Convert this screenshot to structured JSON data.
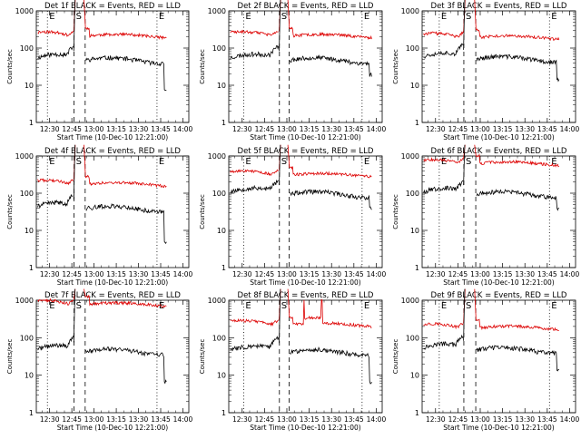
{
  "chart_data": {
    "type": "line",
    "common": {
      "xlabel": "Start Time (10-Dec-10 12:21:00)",
      "ylabel": "Counts/sec",
      "x_ticks": [
        "12:30",
        "12:45",
        "13:00",
        "13:15",
        "13:30",
        "13:45",
        "14:00"
      ],
      "x_tick_minutes": [
        30,
        45,
        60,
        75,
        90,
        105,
        120
      ],
      "xlim_minutes_after_12_00": [
        21,
        124
      ],
      "yscale": "log",
      "ylim": [
        1,
        1000
      ],
      "y_ticks": [
        "1",
        "10",
        "100",
        "1000"
      ],
      "y_tick_values": [
        1,
        10,
        100,
        1000
      ],
      "series_colors": {
        "events": "#000000",
        "lld": "#dd0000"
      },
      "markers": [
        {
          "label": "E",
          "style": "dotted"
        },
        {
          "label": "S",
          "style": "dashed"
        },
        {
          "label": "E",
          "style": "dotted"
        }
      ]
    },
    "panels": [
      {
        "title": "Det 1f BLACK = Events, RED = LLD",
        "events_level": 55,
        "lld_level": 220,
        "pre_rise": 1.8,
        "tail_drop": 5,
        "lld_spike": false,
        "lld_notches": [],
        "seed": 11,
        "line_minutes": {
          "e1": 28.5,
          "s1": 46.5,
          "s2": 54,
          "e2": 102.5
        }
      },
      {
        "title": "Det 2f BLACK = Events, RED = LLD",
        "events_level": 55,
        "lld_level": 220,
        "pre_rise": 1.8,
        "tail_drop": 2,
        "lld_spike": false,
        "lld_notches": [],
        "seed": 23,
        "line_minutes": {
          "e1": 31,
          "s1": 55,
          "s2": 61.5,
          "e2": 110.5
        }
      },
      {
        "title": "Det 3f BLACK = Events, RED = LLD",
        "events_level": 60,
        "lld_level": 200,
        "pre_rise": 1.8,
        "tail_drop": 3,
        "lld_spike": false,
        "lld_notches": [],
        "seed": 37,
        "line_minutes": {
          "e1": 32.5,
          "s1": 49,
          "s2": 57,
          "e2": 106.5
        }
      },
      {
        "title": "Det 4f BLACK = Events, RED = LLD",
        "events_level": 45,
        "lld_level": 180,
        "pre_rise": 1.8,
        "tail_drop": 7,
        "lld_spike": false,
        "lld_notches": [],
        "seed": 41,
        "line_minutes": {
          "e1": 28.5,
          "s1": 46.5,
          "s2": 54,
          "e2": 102.5
        }
      },
      {
        "title": "Det 5f BLACK = Events, RED = LLD",
        "events_level": 110,
        "lld_level": 320,
        "pre_rise": 1.6,
        "tail_drop": 2,
        "lld_spike": false,
        "lld_notches": [],
        "seed": 53,
        "line_minutes": {
          "e1": 31,
          "s1": 55,
          "s2": 61.5,
          "e2": 110.5
        }
      },
      {
        "title": "Det 6f BLACK = Events, RED = LLD",
        "events_level": 110,
        "lld_level": 650,
        "pre_rise": 1.3,
        "tail_drop": 2,
        "lld_spike": false,
        "lld_notches": [],
        "seed": 67,
        "line_minutes": {
          "e1": 32.5,
          "s1": 49,
          "s2": 57,
          "e2": 106.5
        }
      },
      {
        "title": "Det 7f BLACK = Events, RED = LLD",
        "events_level": 50,
        "lld_level": 800,
        "pre_rise": 1.8,
        "tail_drop": 5,
        "lld_spike": false,
        "lld_notches": [],
        "seed": 71,
        "line_minutes": {
          "e1": 28.5,
          "s1": 46.5,
          "s2": 54,
          "e2": 102.5
        }
      },
      {
        "title": "Det 8f BLACK = Events, RED = LLD",
        "events_level": 48,
        "lld_level": 230,
        "pre_rise": 1.8,
        "tail_drop": 5,
        "lld_spike": true,
        "lld_notches": [],
        "seed": 83,
        "line_minutes": {
          "e1": 31,
          "s1": 55,
          "s2": 61.5,
          "e2": 110.5
        }
      },
      {
        "title": "Det 9f BLACK = Events, RED = LLD",
        "events_level": 55,
        "lld_level": 190,
        "pre_rise": 1.8,
        "tail_drop": 3,
        "lld_spike": false,
        "lld_notches": [],
        "seed": 97,
        "line_minutes": {
          "e1": 32.5,
          "s1": 49,
          "s2": 57,
          "e2": 106.5
        }
      }
    ]
  }
}
